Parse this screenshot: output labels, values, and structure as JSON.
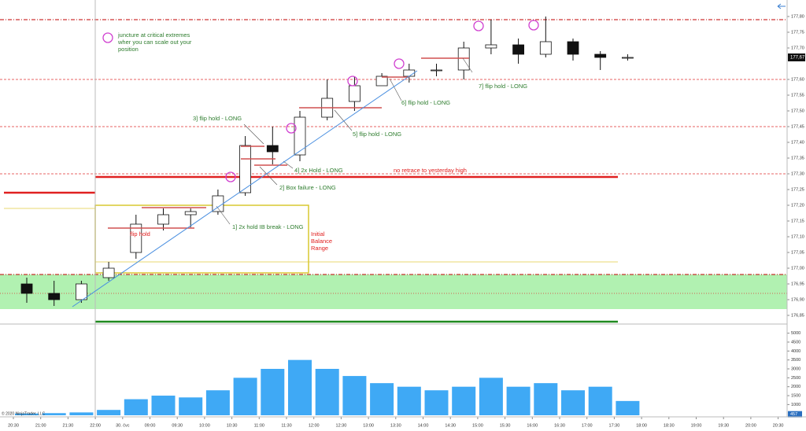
{
  "chart_data": {
    "type": "candlestick",
    "categories": [
      "20:30",
      "21:00",
      "21:30",
      "22:00",
      "30. čvc",
      "09:00",
      "09:30",
      "10:00",
      "10:30",
      "11:00",
      "11:30",
      "12:00",
      "12:30",
      "13:00",
      "13:30",
      "14:00",
      "14:30",
      "15:00",
      "15:30",
      "16:00",
      "16:30",
      "17:00",
      "17:30",
      "18:00",
      "18:30",
      "19:00",
      "19:30",
      "20:00",
      "20:30"
    ],
    "open": [
      176.95,
      176.92,
      176.9,
      176.97,
      177.05,
      177.14,
      177.17,
      177.18,
      177.24,
      177.39,
      177.36,
      177.48,
      177.53,
      177.58,
      177.61,
      177.63,
      177.63,
      177.7,
      177.71,
      177.68,
      177.72,
      177.68,
      177.67,
      null,
      null,
      null,
      null,
      null,
      null
    ],
    "high": [
      176.97,
      176.96,
      176.96,
      177.02,
      177.17,
      177.19,
      177.19,
      177.25,
      177.42,
      177.45,
      177.5,
      177.6,
      177.61,
      177.62,
      177.65,
      177.65,
      177.72,
      177.79,
      177.73,
      177.8,
      177.73,
      177.69,
      177.68,
      null,
      null,
      null,
      null,
      null,
      null
    ],
    "low": [
      176.89,
      176.88,
      176.89,
      176.96,
      177.03,
      177.12,
      177.13,
      177.17,
      177.23,
      177.33,
      177.34,
      177.47,
      177.5,
      177.58,
      177.59,
      177.61,
      177.6,
      177.68,
      177.65,
      177.67,
      177.66,
      177.63,
      177.66,
      null,
      null,
      null,
      null,
      null,
      null
    ],
    "close": [
      176.92,
      176.9,
      176.95,
      177.0,
      177.14,
      177.17,
      177.18,
      177.23,
      177.39,
      177.37,
      177.48,
      177.54,
      177.58,
      177.61,
      177.63,
      177.63,
      177.7,
      177.71,
      177.68,
      177.72,
      177.68,
      177.67,
      177.67,
      null,
      null,
      null,
      null,
      null,
      null
    ],
    "volume": [
      500,
      520,
      560,
      700,
      1300,
      1500,
      1400,
      1800,
      2500,
      3000,
      3500,
      3000,
      2600,
      2200,
      2000,
      1800,
      2000,
      2500,
      2000,
      2200,
      1800,
      2000,
      1200,
      null,
      null,
      null,
      null,
      null,
      null
    ],
    "ylim": [
      176.83,
      177.85
    ],
    "yticks": [
      {
        "value": 177.8,
        "label": "177,80"
      },
      {
        "value": 177.75,
        "label": "177,75"
      },
      {
        "value": 177.7,
        "label": "177,70"
      },
      {
        "value": 177.6,
        "label": "177,60"
      },
      {
        "value": 177.55,
        "label": "177,55"
      },
      {
        "value": 177.5,
        "label": "177,50"
      },
      {
        "value": 177.45,
        "label": "177,45"
      },
      {
        "value": 177.4,
        "label": "177,40"
      },
      {
        "value": 177.35,
        "label": "177,35"
      },
      {
        "value": 177.3,
        "label": "177,30"
      },
      {
        "value": 177.25,
        "label": "177,25"
      },
      {
        "value": 177.2,
        "label": "177,20"
      },
      {
        "value": 177.15,
        "label": "177,15"
      },
      {
        "value": 177.1,
        "label": "177,10"
      },
      {
        "value": 177.05,
        "label": "177,05"
      },
      {
        "value": 177.0,
        "label": "177,00"
      },
      {
        "value": 176.95,
        "label": "176,95"
      },
      {
        "value": 176.9,
        "label": "176,90"
      },
      {
        "value": 176.85,
        "label": "176,85"
      }
    ],
    "last_price": {
      "value": 177.67,
      "label": "177,67"
    },
    "volume_ylim": [
      400,
      5600
    ],
    "volume_yticks": [
      5000,
      4500,
      4000,
      3500,
      3000,
      2500,
      2000,
      1500,
      1000
    ],
    "last_volume": 457,
    "levels": [
      {
        "value": 177.79,
        "color": "#c00000",
        "style": "dashdot",
        "span": "full"
      },
      {
        "value": 177.6,
        "color": "#e03030",
        "style": "dashed",
        "span": "full"
      },
      {
        "value": 177.45,
        "color": "#e03030",
        "style": "dashed",
        "span": "full"
      },
      {
        "value": 177.3,
        "color": "#e03030",
        "style": "dashed",
        "span": "full"
      },
      {
        "value": 177.29,
        "color": "#e02020",
        "style": "thick",
        "span": "session"
      },
      {
        "value": 177.24,
        "color": "#e02020",
        "style": "thick",
        "span": "prior"
      },
      {
        "value": 177.19,
        "color": "#e8d870",
        "style": "thin",
        "span": "prior"
      },
      {
        "value": 177.02,
        "color": "#e8d870",
        "style": "thin",
        "span": "session"
      },
      {
        "value": 176.98,
        "color": "#c00000",
        "style": "dashdot",
        "span": "full"
      },
      {
        "value": 176.92,
        "color": "#e03030",
        "style": "dotted",
        "span": "full"
      },
      {
        "value": 176.83,
        "color": "#208a20",
        "style": "thick",
        "span": "session"
      }
    ],
    "zone": {
      "low": 176.87,
      "high": 176.98,
      "color": "#a8f0a8"
    },
    "ib_box": {
      "low": 176.985,
      "high": 177.2,
      "color": "#d8c830"
    },
    "annotations": [
      {
        "lines": [
          "juncture at critical extremes",
          "wher you can scale out your",
          "position"
        ],
        "color": "#2e7d2e"
      },
      {
        "lines": [
          "7] flip hold - LONG"
        ],
        "color": "#2e7d2e"
      },
      {
        "lines": [
          "6] flip hold - LONG"
        ],
        "color": "#2e7d2e"
      },
      {
        "lines": [
          "5] flip hold - LONG"
        ],
        "color": "#2e7d2e"
      },
      {
        "lines": [
          "3] flip hold - LONG"
        ],
        "color": "#2e7d2e"
      },
      {
        "lines": [
          "4] 2x Hold - LONG"
        ],
        "color": "#2e7d2e"
      },
      {
        "lines": [
          "no retrace to yesterday high"
        ],
        "color": "#e02020"
      },
      {
        "lines": [
          "2] Box failure - LONG"
        ],
        "color": "#2e7d2e"
      },
      {
        "lines": [
          "1] 2x hold IB break - LONG"
        ],
        "color": "#2e7d2e"
      },
      {
        "lines": [
          "flip hold"
        ],
        "color": "#e02020"
      },
      {
        "lines": [
          "Initial",
          "Balance",
          "Range"
        ],
        "color": "#e02020"
      }
    ],
    "copyright": "© 2020 NinjaTrader, LLC",
    "bar_color": "#3fa9f5"
  }
}
